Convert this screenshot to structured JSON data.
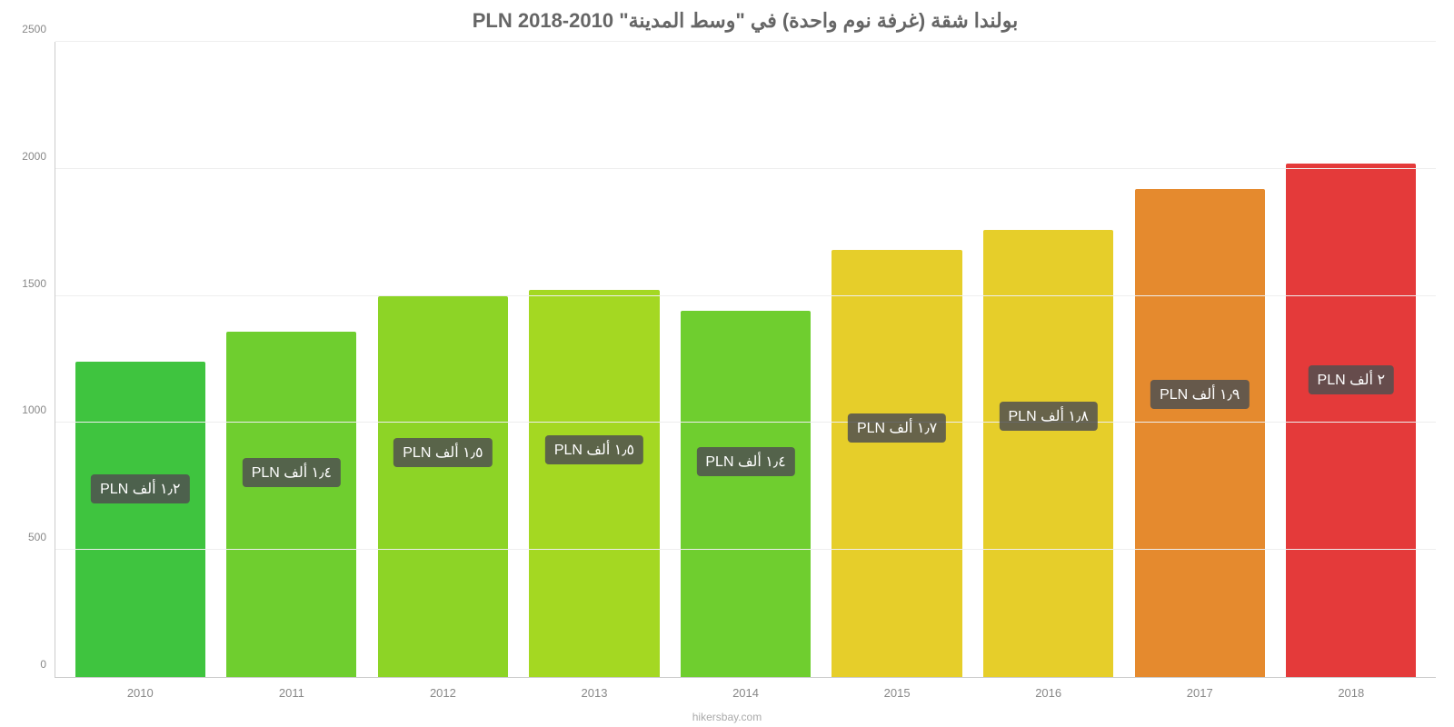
{
  "chart": {
    "type": "bar",
    "title": "بولندا شقة (غرفة نوم واحدة) في \"وسط المدينة\" PLN 2018-2010",
    "title_fontsize": 22,
    "title_color": "#666666",
    "background_color": "#ffffff",
    "grid_color": "#eeeeee",
    "axis_color": "#cccccc",
    "tick_color": "#888888",
    "tick_fontsize": 12,
    "ylim": [
      0,
      2500
    ],
    "ytick_step": 500,
    "yticks": [
      {
        "value": 0,
        "label": "0"
      },
      {
        "value": 500,
        "label": "500"
      },
      {
        "value": 1000,
        "label": "1000"
      },
      {
        "value": 1500,
        "label": "1500"
      },
      {
        "value": 2000,
        "label": "2000"
      },
      {
        "value": 2500,
        "label": "2500"
      }
    ],
    "categories": [
      "2010",
      "2011",
      "2012",
      "2013",
      "2014",
      "2015",
      "2016",
      "2017",
      "2018"
    ],
    "values": [
      1240,
      1360,
      1500,
      1525,
      1440,
      1680,
      1760,
      1920,
      2020
    ],
    "bar_colors": [
      "#3fc43f",
      "#6fce2f",
      "#8dd426",
      "#a4d822",
      "#6fce2f",
      "#e6ce2a",
      "#e6ce2a",
      "#e58a2e",
      "#e43a3a"
    ],
    "bar_labels": [
      "١٫٢ ألف PLN",
      "١٫٤ ألف PLN",
      "١٫٥ ألف PLN",
      "١٫٥ ألف PLN",
      "١٫٤ ألف PLN",
      "١٫٧ ألف PLN",
      "١٫٨ ألف PLN",
      "١٫٩ ألف PLN",
      "٢ ألف PLN"
    ],
    "bar_label_bg": "rgba(80,80,80,0.85)",
    "bar_label_color": "#ffffff",
    "bar_label_fontsize": 16,
    "bar_width": 0.86,
    "attribution": "hikersbay.com",
    "attribution_color": "#aaaaaa"
  }
}
